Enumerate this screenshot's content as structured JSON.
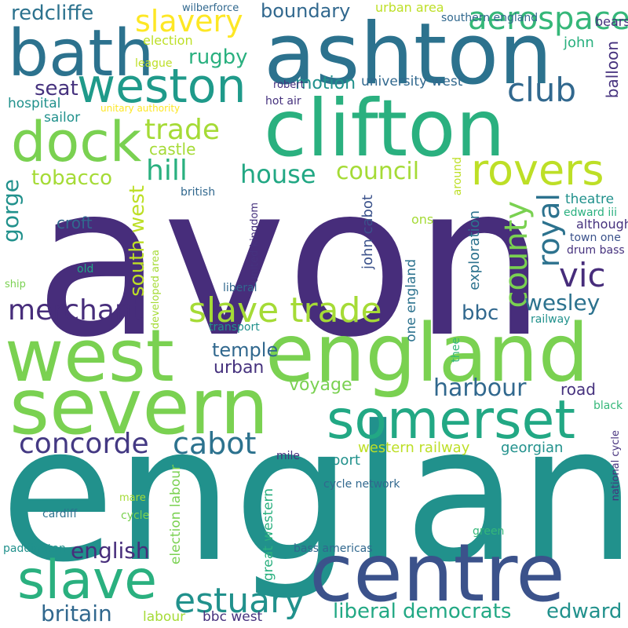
{
  "words": [
    {
      "text": "avon",
      "color": "#472d7b"
    },
    {
      "text": "england",
      "color": "#21918c"
    },
    {
      "text": "west",
      "color": "#7ad151"
    },
    {
      "text": "ashton",
      "color": "#2c728e"
    },
    {
      "text": "england",
      "color": "#7ad151"
    },
    {
      "text": "clifton",
      "color": "#2ab07f"
    },
    {
      "text": "severn",
      "color": "#7ad151"
    },
    {
      "text": "centre",
      "color": "#3b528b"
    },
    {
      "text": "bath",
      "color": "#2c728e"
    },
    {
      "text": "weston",
      "color": "#1f9a8a"
    },
    {
      "text": "dock",
      "color": "#7ad151"
    },
    {
      "text": "somerset",
      "color": "#22a884"
    },
    {
      "text": "slave",
      "color": "#2ab07f"
    },
    {
      "text": "rovers",
      "color": "#bddf26"
    },
    {
      "text": "slave trade",
      "color": "#a5db36"
    },
    {
      "text": "estuary",
      "color": "#21918c"
    },
    {
      "text": "cabot",
      "color": "#2c728e"
    },
    {
      "text": "concorde",
      "color": "#443983"
    },
    {
      "text": "merchant",
      "color": "#472d7b"
    },
    {
      "text": "harbour",
      "color": "#31688e"
    },
    {
      "text": "house",
      "color": "#22a884"
    },
    {
      "text": "council",
      "color": "#a5db36"
    },
    {
      "text": "hill",
      "color": "#2ab07f"
    },
    {
      "text": "trade",
      "color": "#a5db36"
    },
    {
      "text": "club",
      "color": "#31688e"
    },
    {
      "text": "aerospace",
      "color": "#35b779"
    },
    {
      "text": "slavery",
      "color": "#fde725"
    },
    {
      "text": "royal",
      "color": "#2c728e"
    },
    {
      "text": "county",
      "color": "#7ad151"
    },
    {
      "text": "vic",
      "color": "#472d7b"
    },
    {
      "text": "wesley",
      "color": "#2c728e"
    },
    {
      "text": "liberal democrats",
      "color": "#22a884"
    },
    {
      "text": "edward",
      "color": "#21918c"
    },
    {
      "text": "britain",
      "color": "#31688e"
    },
    {
      "text": "english",
      "color": "#472d7b"
    },
    {
      "text": "redcliffe",
      "color": "#2c728e"
    },
    {
      "text": "boundary",
      "color": "#31688e"
    },
    {
      "text": "rugby",
      "color": "#2ab07f"
    },
    {
      "text": "tobacco",
      "color": "#a5db36"
    },
    {
      "text": "gorge",
      "color": "#21918c"
    },
    {
      "text": "south west",
      "color": "#bddf26"
    },
    {
      "text": "temple",
      "color": "#31688e"
    },
    {
      "text": "seat",
      "color": "#46327e"
    },
    {
      "text": "motion",
      "color": "#21918c"
    },
    {
      "text": "bbc",
      "color": "#31688e"
    },
    {
      "text": "voyage",
      "color": "#7ad151"
    },
    {
      "text": "road",
      "color": "#46327e"
    },
    {
      "text": "urban",
      "color": "#46327e"
    },
    {
      "text": "croft",
      "color": "#31688e"
    },
    {
      "text": "castle",
      "color": "#a5db36"
    },
    {
      "text": "hospital",
      "color": "#21918c"
    },
    {
      "text": "sailor",
      "color": "#21918c"
    },
    {
      "text": "john cabot",
      "color": "#3b528b"
    },
    {
      "text": "one england",
      "color": "#2c728e"
    },
    {
      "text": "exploration",
      "color": "#2c728e"
    },
    {
      "text": "balloon",
      "color": "#46327e"
    },
    {
      "text": "john",
      "color": "#2ab07f"
    },
    {
      "text": "bears",
      "color": "#46327e"
    },
    {
      "text": "university west",
      "color": "#31688e"
    },
    {
      "text": "urban area",
      "color": "#bddf26"
    },
    {
      "text": "southern england",
      "color": "#31688e"
    },
    {
      "text": "wilberforce",
      "color": "#31688e"
    },
    {
      "text": "election",
      "color": "#bddf26"
    },
    {
      "text": "league",
      "color": "#bddf26"
    },
    {
      "text": "unitary authority",
      "color": "#fde725"
    },
    {
      "text": "robert",
      "color": "#46327e"
    },
    {
      "text": "hot air",
      "color": "#46327e"
    },
    {
      "text": "theatre",
      "color": "#21918c"
    },
    {
      "text": "edward iii",
      "color": "#2ab07f"
    },
    {
      "text": "although",
      "color": "#46327e"
    },
    {
      "text": "town one",
      "color": "#3b528b"
    },
    {
      "text": "drum bass",
      "color": "#46327e"
    },
    {
      "text": "ons",
      "color": "#a5db36"
    },
    {
      "text": "around",
      "color": "#bddf26"
    },
    {
      "text": "united kingdom",
      "color": "#46327e"
    },
    {
      "text": "british",
      "color": "#31688e"
    },
    {
      "text": "old",
      "color": "#22a884"
    },
    {
      "text": "ship",
      "color": "#7ad151"
    },
    {
      "text": "liberal",
      "color": "#31688e"
    },
    {
      "text": "developed area",
      "color": "#a5db36"
    },
    {
      "text": "transport",
      "color": "#21918c"
    },
    {
      "text": "railway",
      "color": "#21918c"
    },
    {
      "text": "thee",
      "color": "#35b779"
    },
    {
      "text": "black",
      "color": "#35b779"
    },
    {
      "text": "national cycle",
      "color": "#46327e"
    },
    {
      "text": "western railway",
      "color": "#bddf26"
    },
    {
      "text": "georgian",
      "color": "#21918c"
    },
    {
      "text": "port",
      "color": "#21918c"
    },
    {
      "text": "mile",
      "color": "#46327e"
    },
    {
      "text": "cycle network",
      "color": "#31688e"
    },
    {
      "text": "election labour",
      "color": "#7ad151"
    },
    {
      "text": "great western",
      "color": "#2ab07f"
    },
    {
      "text": "mare",
      "color": "#a5db36"
    },
    {
      "text": "cardiff",
      "color": "#2c728e"
    },
    {
      "text": "cycle",
      "color": "#7ad151"
    },
    {
      "text": "green",
      "color": "#35b779"
    },
    {
      "text": "bass americas",
      "color": "#31688e"
    },
    {
      "text": "paddington",
      "color": "#21918c"
    },
    {
      "text": "labour",
      "color": "#a5db36"
    },
    {
      "text": "bbc west",
      "color": "#46327e"
    }
  ]
}
